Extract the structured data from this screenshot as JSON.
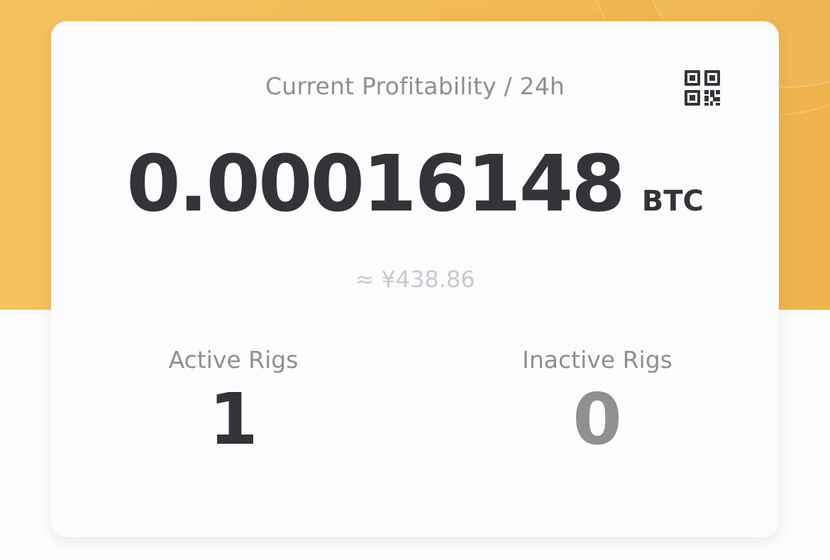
{
  "summary_card": {
    "title": "Current Profitability / 24h",
    "amount": "0.00016148",
    "unit": "BTC",
    "fiat_estimate": "≈ ¥438.86",
    "qr_icon": "qr-code-icon"
  },
  "rigs": {
    "active_label": "Active Rigs",
    "active_count": "1",
    "inactive_label": "Inactive Rigs",
    "inactive_count": "0"
  },
  "colors": {
    "header_band": "#f1bb55",
    "text_primary": "#333437",
    "text_secondary": "#8e8f92",
    "text_muted": "#c8c9cc"
  }
}
